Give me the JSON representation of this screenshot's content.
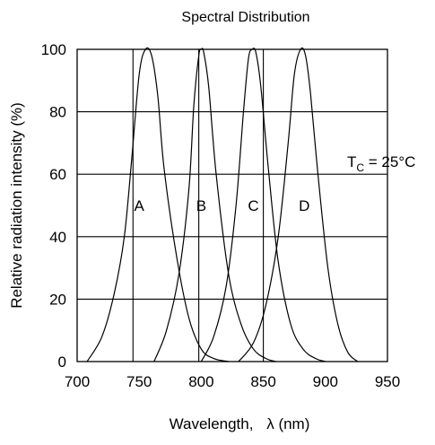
{
  "chart_data": {
    "type": "line",
    "title": "Spectral Distribution",
    "xlabel": "Wavelength,",
    "xlabel_symbol": "λ",
    "xlabel_unit": "(nm)",
    "ylabel": "Relative radiation intensity (%)",
    "xlim": [
      700,
      950
    ],
    "ylim": [
      0,
      100
    ],
    "xticks": [
      700,
      750,
      800,
      850,
      900,
      950
    ],
    "yticks": [
      0,
      20,
      40,
      60,
      80,
      100
    ],
    "grid": "horizontal",
    "vertical_markers": [
      745,
      798,
      850
    ],
    "annotation": {
      "main": "T",
      "subscript": "C",
      "rest": " = 25°C"
    },
    "series": [
      {
        "name": "A",
        "label_at": [
          750,
          50
        ],
        "x": [
          708,
          720,
          730,
          738,
          744,
          750,
          755,
          760,
          765,
          770,
          780,
          790,
          800,
          810,
          822
        ],
        "y": [
          0,
          8,
          22,
          40,
          65,
          92,
          100,
          98,
          85,
          62,
          34,
          14,
          4,
          1,
          0
        ]
      },
      {
        "name": "B",
        "label_at": [
          800,
          50
        ],
        "x": [
          762,
          772,
          782,
          790,
          794,
          798,
          800,
          802,
          806,
          812,
          822,
          832,
          842,
          852,
          860
        ],
        "y": [
          0,
          10,
          28,
          55,
          82,
          98,
          100,
          99,
          88,
          60,
          28,
          12,
          4,
          1,
          0
        ]
      },
      {
        "name": "C",
        "label_at": [
          842,
          50
        ],
        "x": [
          800,
          810,
          820,
          828,
          834,
          838,
          841,
          844,
          848,
          854,
          862,
          872,
          882,
          892,
          900
        ],
        "y": [
          0,
          8,
          24,
          50,
          80,
          97,
          100,
          99,
          88,
          62,
          32,
          12,
          4,
          1,
          0
        ]
      },
      {
        "name": "D",
        "label_at": [
          883,
          50
        ],
        "x": [
          830,
          842,
          852,
          862,
          870,
          875,
          880,
          884,
          888,
          894,
          902,
          910,
          918,
          926
        ],
        "y": [
          0,
          6,
          18,
          40,
          70,
          92,
          100,
          98,
          86,
          60,
          30,
          12,
          3,
          0
        ]
      }
    ]
  }
}
